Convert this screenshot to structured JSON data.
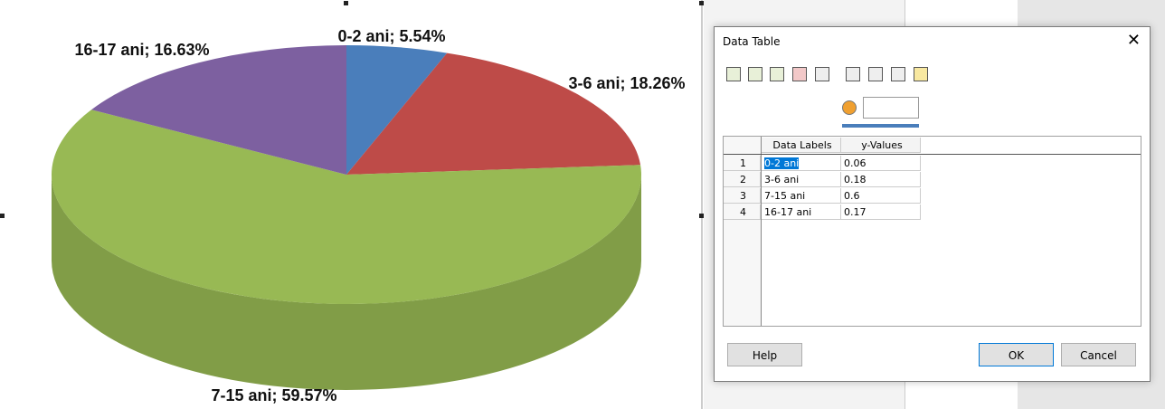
{
  "chart_data": {
    "type": "pie",
    "values": [
      5.54,
      18.26,
      59.57,
      16.63
    ],
    "value_labels": [
      "0-2 ani; 5.54%",
      "3-6 ani; 18.26%",
      "7-15 ani; 59.57%",
      "16-17 ani; 16.63%"
    ],
    "colors": [
      "#4a7ebb",
      "#be4b48",
      "#98b954",
      "#7d60a0"
    ]
  },
  "dialog": {
    "title": "Data Table",
    "table": {
      "columns": [
        "Data Labels",
        "y-Values"
      ],
      "rows": [
        [
          "1",
          "0-2 ani",
          "0.06"
        ],
        [
          "2",
          "3-6 ani",
          "0.18"
        ],
        [
          "3",
          "7-15 ani",
          "0.6"
        ],
        [
          "4",
          "16-17 ani",
          "0.17"
        ]
      ]
    },
    "buttons": {
      "help": "Help",
      "ok": "OK",
      "cancel": "Cancel"
    }
  }
}
